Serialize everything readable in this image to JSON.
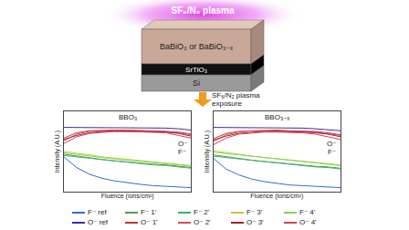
{
  "diagram": {
    "plasma_label": "SF₆/N₂ plasma",
    "layers": [
      "BaBiO₃ or BaBiO₃₋ₓ",
      "SrTiO₃",
      "Si"
    ],
    "arrow_label": "SF₆/N₂ plasma exposure"
  },
  "chart_data": [
    {
      "type": "line",
      "title": "BBO₃",
      "x_label": "Fluence (ions/cm²)",
      "y_label": "Intensity (A.U.)",
      "x": [
        0,
        1,
        2,
        3,
        4,
        5,
        6,
        7,
        8,
        9,
        10
      ],
      "xlim": [
        0,
        10
      ],
      "ylim": [
        0,
        12
      ],
      "tick_labels": false,
      "grid": false,
      "legend": "bottom",
      "annotations": [
        {
          "text": "O⁻",
          "x": 9.3,
          "y": 7.2
        },
        {
          "text": "F⁻",
          "x": 9.3,
          "y": 6.0
        }
      ],
      "series": [
        {
          "name": "F⁻ ref",
          "color": "#2f6fd6",
          "values": [
            5.2,
            3.6,
            2.6,
            2.0,
            1.6,
            1.3,
            1.1,
            0.9,
            0.8,
            0.7,
            0.6
          ]
        },
        {
          "name": "F⁻ 1'",
          "color": "#4f9a5a",
          "values": [
            5.6,
            5.3,
            5.0,
            4.8,
            4.6,
            4.4,
            4.2,
            4.1,
            4.0,
            3.8,
            3.6
          ]
        },
        {
          "name": "F⁻ 2'",
          "color": "#3cb371",
          "values": [
            5.4,
            5.2,
            5.0,
            4.7,
            4.5,
            4.3,
            4.2,
            4.0,
            3.9,
            3.7,
            3.5
          ]
        },
        {
          "name": "F⁻ 3'",
          "color": "#b5d334",
          "values": [
            6.0,
            5.8,
            5.5,
            5.2,
            5.0,
            4.8,
            4.6,
            4.4,
            4.3,
            4.1,
            3.9
          ]
        },
        {
          "name": "F⁻ 4'",
          "color": "#8fd14f",
          "values": [
            5.8,
            5.6,
            5.4,
            5.1,
            4.9,
            4.7,
            4.5,
            4.3,
            4.2,
            4.0,
            3.8
          ]
        },
        {
          "name": "O⁻ ref",
          "color": "#3a2fa0",
          "values": [
            9.6,
            9.6,
            9.6,
            9.6,
            9.6,
            9.6,
            9.6,
            9.5,
            9.5,
            9.4,
            9.2
          ]
        },
        {
          "name": "O⁻ 1'",
          "color": "#c0392b",
          "values": [
            8.0,
            8.8,
            9.1,
            9.2,
            9.2,
            9.2,
            9.2,
            9.1,
            9.0,
            8.9,
            8.6
          ]
        },
        {
          "name": "O⁻ 2'",
          "color": "#e0485a",
          "values": [
            7.6,
            8.6,
            9.0,
            9.1,
            9.1,
            9.1,
            9.1,
            9.1,
            9.0,
            8.8,
            8.5
          ]
        },
        {
          "name": "O⁻ 3'",
          "color": "#a0203a",
          "values": [
            7.8,
            8.4,
            8.8,
            9.0,
            9.0,
            9.0,
            9.0,
            9.0,
            8.9,
            8.7,
            8.3
          ]
        },
        {
          "name": "O⁻ 4'",
          "color": "#d04060",
          "values": [
            7.2,
            8.2,
            8.7,
            8.9,
            9.0,
            9.0,
            8.9,
            8.9,
            8.8,
            8.4,
            8.0
          ]
        }
      ]
    },
    {
      "type": "line",
      "title": "BBO₃₋ₓ",
      "x_label": "Fluence (ions/cm²)",
      "y_label": "Intensity (A.U.)",
      "x": [
        0,
        1,
        2,
        3,
        4,
        5,
        6,
        7,
        8,
        9,
        10
      ],
      "xlim": [
        0,
        10
      ],
      "ylim": [
        0,
        12
      ],
      "tick_labels": false,
      "grid": false,
      "annotations": [
        {
          "text": "O⁻",
          "x": 9.3,
          "y": 7.2
        },
        {
          "text": "F⁻",
          "x": 9.3,
          "y": 6.0
        }
      ],
      "series": [
        {
          "name": "F⁻ ref",
          "color": "#2f6fd6",
          "values": [
            5.0,
            3.4,
            2.5,
            1.9,
            1.5,
            1.2,
            1.0,
            0.9,
            0.8,
            0.7,
            0.6
          ]
        },
        {
          "name": "F⁻ 1'",
          "color": "#4f9a5a",
          "values": [
            5.5,
            5.2,
            4.9,
            4.7,
            4.5,
            4.3,
            4.1,
            4.0,
            3.8,
            3.7,
            3.5
          ]
        },
        {
          "name": "F⁻ 2'",
          "color": "#3cb371",
          "values": [
            5.3,
            5.1,
            4.8,
            4.6,
            4.4,
            4.2,
            4.0,
            3.9,
            3.7,
            3.6,
            3.4
          ]
        },
        {
          "name": "F⁻ 3'",
          "color": "#b5d334",
          "values": [
            6.1,
            5.9,
            5.6,
            5.3,
            5.1,
            4.9,
            4.7,
            4.5,
            4.4,
            4.2,
            4.0
          ]
        },
        {
          "name": "F⁻ 4'",
          "color": "#8fd14f",
          "values": [
            5.9,
            5.7,
            5.4,
            5.2,
            5.0,
            4.8,
            4.6,
            4.4,
            4.3,
            4.1,
            3.9
          ]
        },
        {
          "name": "O⁻ ref",
          "color": "#3a2fa0",
          "values": [
            9.6,
            9.6,
            9.6,
            9.6,
            9.6,
            9.6,
            9.5,
            9.5,
            9.4,
            9.3,
            9.1
          ]
        },
        {
          "name": "O⁻ 1'",
          "color": "#c0392b",
          "values": [
            7.9,
            8.7,
            9.0,
            9.1,
            9.2,
            9.2,
            9.1,
            9.1,
            9.0,
            8.8,
            8.5
          ]
        },
        {
          "name": "O⁻ 2'",
          "color": "#e0485a",
          "values": [
            7.5,
            8.5,
            8.9,
            9.1,
            9.1,
            9.1,
            9.1,
            9.0,
            8.9,
            8.7,
            8.4
          ]
        },
        {
          "name": "O⁻ 3'",
          "color": "#a0203a",
          "values": [
            7.7,
            8.3,
            8.7,
            8.9,
            9.0,
            9.0,
            9.0,
            8.9,
            8.8,
            8.6,
            8.2
          ]
        },
        {
          "name": "O⁻ 4'",
          "color": "#d04060",
          "values": [
            7.0,
            8.0,
            8.6,
            8.8,
            8.9,
            8.9,
            8.9,
            8.8,
            8.6,
            8.2,
            7.8
          ]
        }
      ]
    }
  ]
}
